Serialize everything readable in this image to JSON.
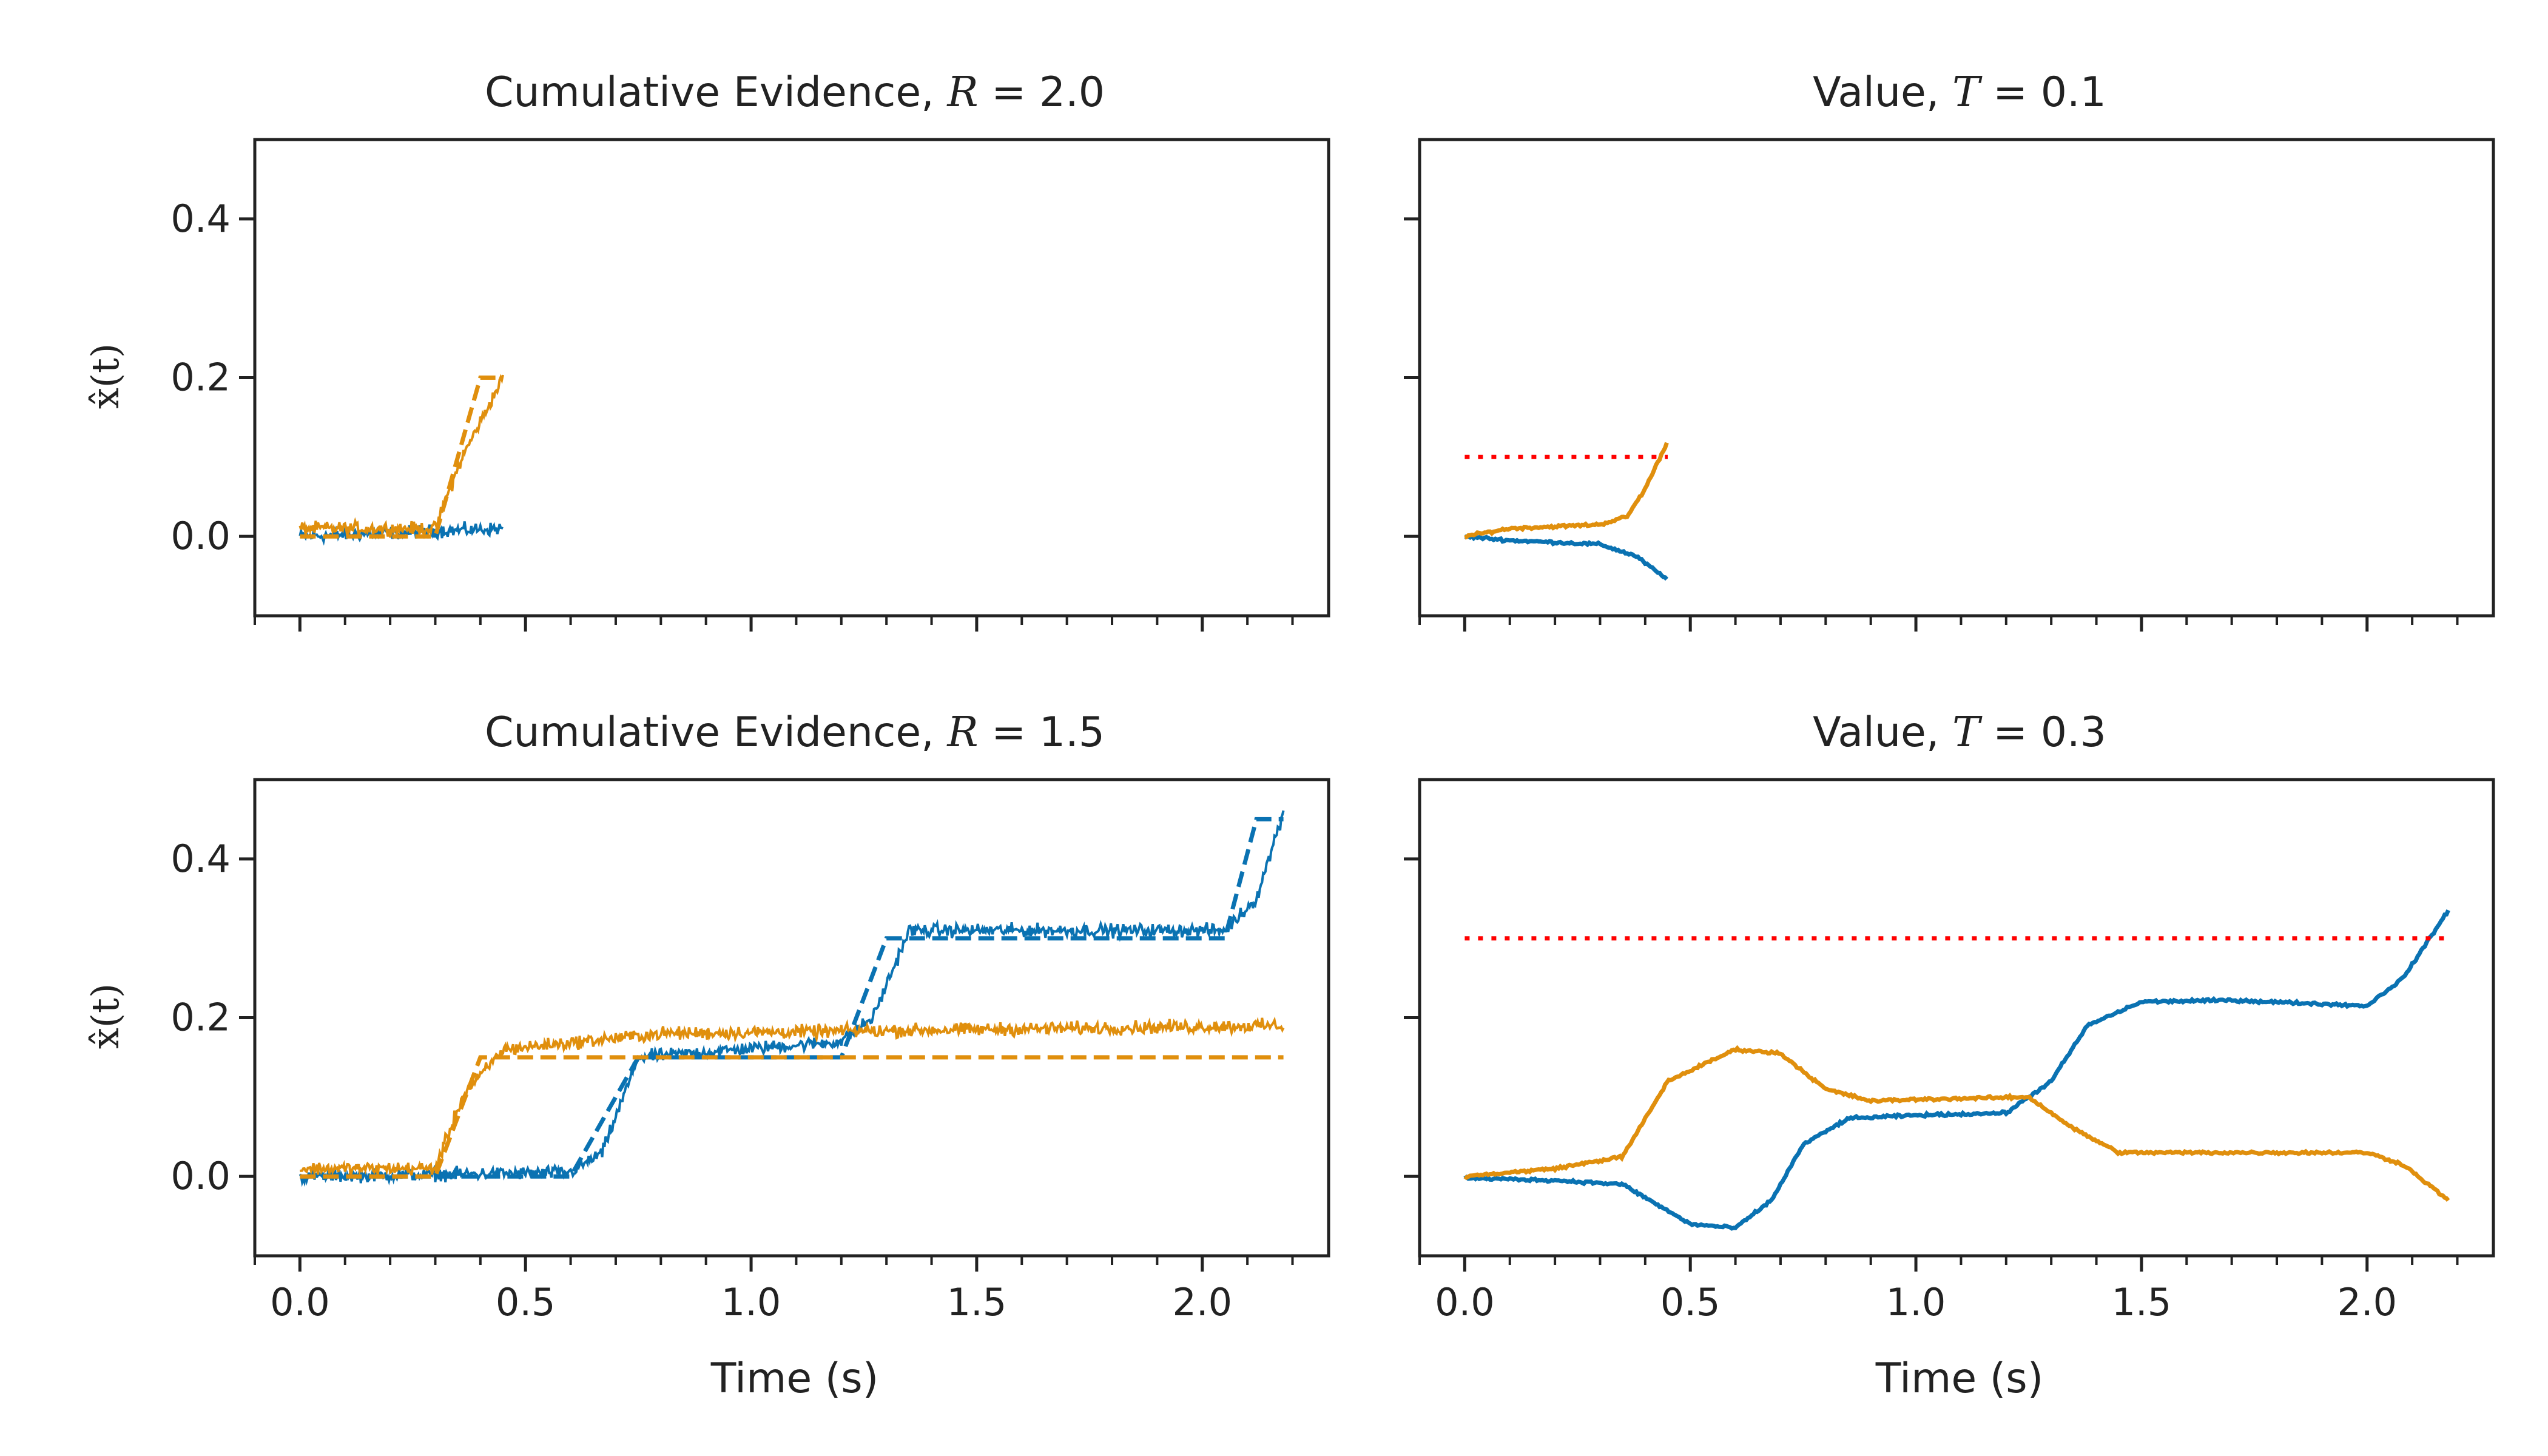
{
  "colors": {
    "blue": "#0a72b2",
    "orange": "#e08f0d",
    "threshold": "#ff0000",
    "axes": "#222222"
  },
  "axes_labels": {
    "xlabel": "Time (s)",
    "ylabel": "x̂(t)"
  },
  "panels": [
    {
      "id": "ce-r20",
      "title_prefix": "Cumulative Evidence, ",
      "title_var": "R",
      "title_eq": " = ",
      "title_val": "2.0"
    },
    {
      "id": "val-t01",
      "title_prefix": "Value, ",
      "title_var": "T",
      "title_eq": " = ",
      "title_val": "0.1"
    },
    {
      "id": "ce-r15",
      "title_prefix": "Cumulative Evidence, ",
      "title_var": "R",
      "title_eq": " = ",
      "title_val": "1.5"
    },
    {
      "id": "val-t03",
      "title_prefix": "Value, ",
      "title_var": "T",
      "title_eq": " = ",
      "title_val": "0.3"
    }
  ],
  "chart_data": [
    {
      "type": "line",
      "title": "Cumulative Evidence, R = 2.0",
      "xlim": [
        -0.1,
        2.28
      ],
      "ylim": [
        -0.1,
        0.5
      ],
      "xticks": [
        "0.0",
        "0.5",
        "1.0",
        "1.5",
        "2.0"
      ],
      "yticks": [
        "0.0",
        "0.2",
        "0.4"
      ],
      "ylabel": "x̂(t)",
      "series": [
        {
          "color": "blue",
          "style": "noisy",
          "x": [
            0,
            0.45
          ],
          "y": [
            0.0,
            0.01
          ]
        },
        {
          "color": "orange",
          "style": "noisy",
          "x": [
            0,
            0.3,
            0.36,
            0.45
          ],
          "y": [
            0.01,
            0.01,
            0.1,
            0.2
          ]
        },
        {
          "color": "orange",
          "style": "dashed",
          "x": [
            0,
            0.3,
            0.4,
            0.45
          ],
          "y": [
            0.0,
            0.0,
            0.2,
            0.2
          ]
        }
      ]
    },
    {
      "type": "line",
      "title": "Value, T = 0.1",
      "xlim": [
        -0.1,
        2.28
      ],
      "ylim": [
        -0.1,
        0.5
      ],
      "xticks": [],
      "yticks": [],
      "series": [
        {
          "color": "blue",
          "style": "smooth",
          "x": [
            0,
            0.1,
            0.3,
            0.38,
            0.45
          ],
          "y": [
            0.0,
            -0.005,
            -0.01,
            -0.025,
            -0.055
          ]
        },
        {
          "color": "orange",
          "style": "smooth",
          "x": [
            0,
            0.1,
            0.3,
            0.36,
            0.4,
            0.45
          ],
          "y": [
            0.0,
            0.01,
            0.015,
            0.025,
            0.06,
            0.12
          ]
        },
        {
          "color": "threshold",
          "style": "dotted",
          "x": [
            0,
            0.45
          ],
          "y": [
            0.1,
            0.1
          ]
        }
      ]
    },
    {
      "type": "line",
      "title": "Cumulative Evidence, R = 1.5",
      "xlim": [
        -0.1,
        2.28
      ],
      "ylim": [
        -0.1,
        0.5
      ],
      "xticks": [
        "0.0",
        "0.5",
        "1.0",
        "1.5",
        "2.0"
      ],
      "yticks": [
        "0.0",
        "0.2",
        "0.4"
      ],
      "xlabel": "Time (s)",
      "ylabel": "x̂(t)",
      "series": [
        {
          "color": "blue",
          "style": "noisy",
          "x": [
            0,
            0.6,
            0.67,
            0.75,
            1.2,
            1.27,
            1.35,
            2.05,
            2.12,
            2.18
          ],
          "y": [
            0.0,
            0.005,
            0.03,
            0.15,
            0.17,
            0.2,
            0.31,
            0.31,
            0.35,
            0.46
          ]
        },
        {
          "color": "orange",
          "style": "noisy",
          "x": [
            0,
            0.3,
            0.36,
            0.45,
            0.8,
            2.18
          ],
          "y": [
            0.01,
            0.01,
            0.1,
            0.16,
            0.18,
            0.19
          ]
        },
        {
          "color": "blue",
          "style": "dashed",
          "x": [
            0,
            0.6,
            0.75,
            1.2,
            1.3,
            2.05,
            2.12,
            2.18
          ],
          "y": [
            0.0,
            0.0,
            0.15,
            0.15,
            0.3,
            0.3,
            0.45,
            0.45
          ]
        },
        {
          "color": "orange",
          "style": "dashed",
          "x": [
            0,
            0.3,
            0.4,
            2.18
          ],
          "y": [
            0.0,
            0.0,
            0.15,
            0.15
          ]
        }
      ]
    },
    {
      "type": "line",
      "title": "Value, T = 0.3",
      "xlim": [
        -0.1,
        2.28
      ],
      "ylim": [
        -0.1,
        0.5
      ],
      "xticks": [
        "0.0",
        "0.5",
        "1.0",
        "1.5",
        "2.0"
      ],
      "yticks": [],
      "xlabel": "Time (s)",
      "series": [
        {
          "color": "blue",
          "style": "smooth",
          "x": [
            0,
            0.2,
            0.35,
            0.5,
            0.6,
            0.68,
            0.75,
            0.85,
            1.0,
            1.2,
            1.3,
            1.38,
            1.5,
            1.7,
            2.0,
            2.08,
            2.18
          ],
          "y": [
            -0.002,
            -0.005,
            -0.01,
            -0.06,
            -0.065,
            -0.03,
            0.04,
            0.073,
            0.077,
            0.08,
            0.12,
            0.19,
            0.22,
            0.222,
            0.215,
            0.25,
            0.335
          ]
        },
        {
          "color": "orange",
          "style": "smooth",
          "x": [
            0,
            0.2,
            0.35,
            0.45,
            0.6,
            0.7,
            0.8,
            0.9,
            1.0,
            1.25,
            1.35,
            1.45,
            1.7,
            2.0,
            2.08,
            2.18
          ],
          "y": [
            0.0,
            0.01,
            0.025,
            0.12,
            0.16,
            0.155,
            0.11,
            0.095,
            0.097,
            0.1,
            0.06,
            0.03,
            0.03,
            0.03,
            0.015,
            -0.03
          ]
        },
        {
          "color": "threshold",
          "style": "dotted",
          "x": [
            0,
            2.18
          ],
          "y": [
            0.3,
            0.3
          ]
        }
      ]
    }
  ]
}
